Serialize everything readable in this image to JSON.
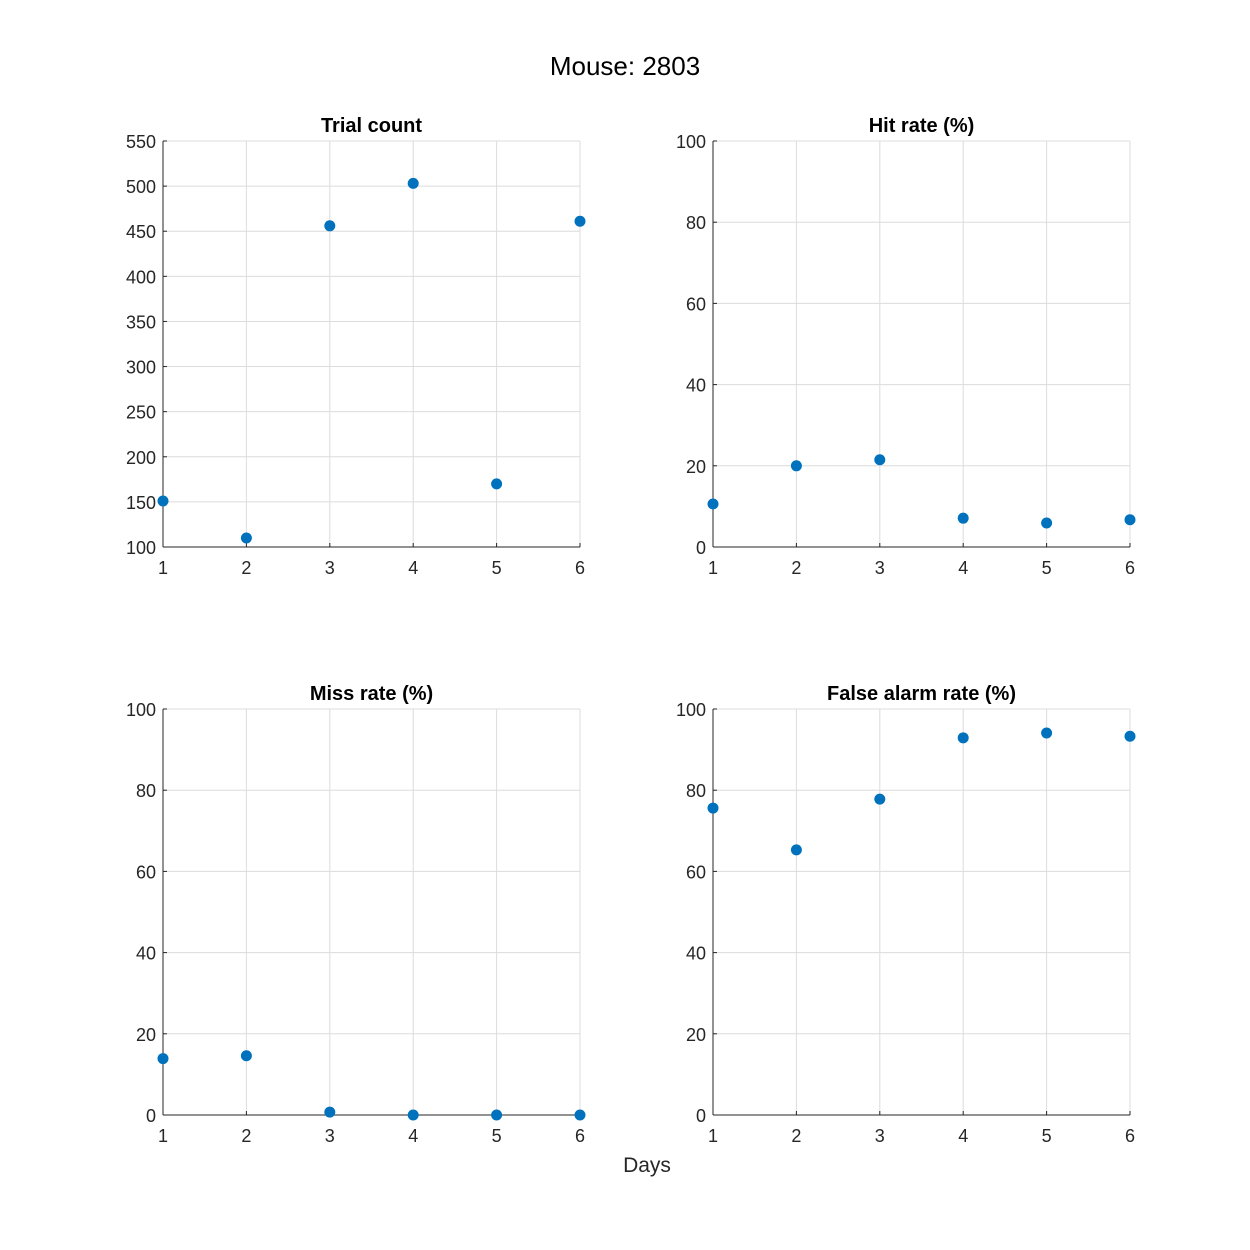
{
  "figure": {
    "title": "Mouse: 2803",
    "xlabel": "Days"
  },
  "colors": {
    "marker": "#0072BD",
    "axis": "#262626",
    "grid": "#dcdcdc",
    "background": "#ffffff"
  },
  "chart_data": [
    {
      "type": "scatter",
      "title": "Trial count",
      "x": [
        1,
        2,
        3,
        4,
        5,
        6
      ],
      "y": [
        151,
        110,
        456,
        503,
        170,
        461
      ],
      "xlim": [
        1,
        6
      ],
      "ylim": [
        100,
        550
      ],
      "xticks": [
        1,
        2,
        3,
        4,
        5,
        6
      ],
      "yticks": [
        100,
        150,
        200,
        250,
        300,
        350,
        400,
        450,
        500,
        550
      ],
      "grid": true
    },
    {
      "type": "scatter",
      "title": "Hit rate (%)",
      "x": [
        1,
        2,
        3,
        4,
        5,
        6
      ],
      "y": [
        10.6,
        20.0,
        21.5,
        7.1,
        5.9,
        6.7
      ],
      "xlim": [
        1,
        6
      ],
      "ylim": [
        0,
        100
      ],
      "xticks": [
        1,
        2,
        3,
        4,
        5,
        6
      ],
      "yticks": [
        0,
        20,
        40,
        60,
        80,
        100
      ],
      "grid": true
    },
    {
      "type": "scatter",
      "title": "Miss rate (%)",
      "x": [
        1,
        2,
        3,
        4,
        5,
        6
      ],
      "y": [
        13.9,
        14.6,
        0.7,
        0.0,
        0.0,
        0.0
      ],
      "xlim": [
        1,
        6
      ],
      "ylim": [
        0,
        100
      ],
      "xticks": [
        1,
        2,
        3,
        4,
        5,
        6
      ],
      "yticks": [
        0,
        20,
        40,
        60,
        80,
        100
      ],
      "grid": true
    },
    {
      "type": "scatter",
      "title": "False alarm rate (%)",
      "x": [
        1,
        2,
        3,
        4,
        5,
        6
      ],
      "y": [
        75.6,
        65.3,
        77.8,
        92.9,
        94.1,
        93.3
      ],
      "xlim": [
        1,
        6
      ],
      "ylim": [
        0,
        100
      ],
      "xticks": [
        1,
        2,
        3,
        4,
        5,
        6
      ],
      "yticks": [
        0,
        20,
        40,
        60,
        80,
        100
      ],
      "grid": true
    }
  ]
}
